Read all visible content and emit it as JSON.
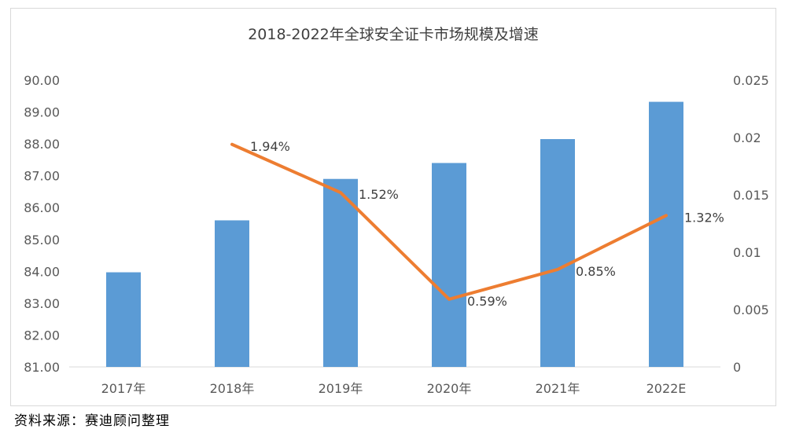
{
  "chart_data": {
    "type": "bar",
    "title": "2018-2022年全球安全证卡市场规模及增速",
    "categories": [
      "2017年",
      "2018年",
      "2019年",
      "2020年",
      "2021年",
      "2022E"
    ],
    "series": [
      {
        "type": "bar",
        "axis": "left",
        "color": "#5b9bd5",
        "values": [
          83.97,
          85.6,
          86.9,
          87.4,
          88.15,
          89.32
        ]
      },
      {
        "type": "line",
        "axis": "right",
        "color": "#ed7d31",
        "values": [
          null,
          0.0194,
          0.0152,
          0.0059,
          0.0085,
          0.0132
        ],
        "data_labels": [
          "",
          "1.94%",
          "1.52%",
          "0.59%",
          "0.85%",
          "1.32%"
        ]
      }
    ],
    "y_left": {
      "min": 81,
      "max": 90,
      "step": 1,
      "ticks": [
        "81.00",
        "82.00",
        "83.00",
        "84.00",
        "85.00",
        "86.00",
        "87.00",
        "88.00",
        "89.00",
        "90.00"
      ]
    },
    "y_right": {
      "min": 0,
      "max": 0.025,
      "step": 0.005,
      "ticks": [
        "0",
        "0.005",
        "0.01",
        "0.015",
        "0.02",
        "0.025"
      ]
    },
    "grid": false
  },
  "source_note": "资料来源：赛迪顾问整理"
}
